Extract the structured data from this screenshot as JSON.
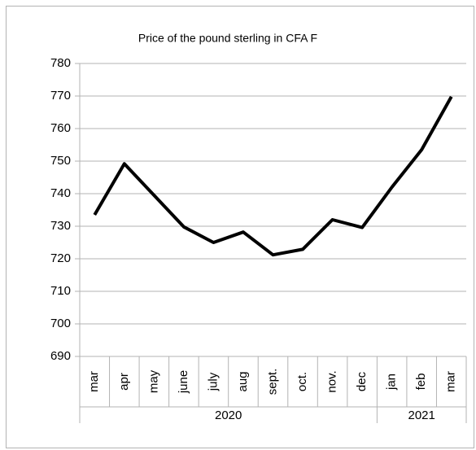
{
  "chart_data": {
    "type": "line",
    "title": "Price of the pound sterling in CFA F",
    "categories": [
      "mar",
      "apr",
      "may",
      "june",
      "july",
      "aug",
      "sept.",
      "oct.",
      "nov.",
      "dec",
      "jan",
      "feb",
      "mar"
    ],
    "year_groups": [
      {
        "label": "2020",
        "count": 10
      },
      {
        "label": "2021",
        "count": 3
      }
    ],
    "values": [
      733.5,
      749.2,
      739.5,
      729.8,
      725,
      728.2,
      721.2,
      722.9,
      732,
      729.6,
      742,
      753.5,
      769.8
    ],
    "color": "#000000",
    "ylim": [
      690,
      780
    ],
    "yticks": [
      690,
      700,
      710,
      720,
      730,
      740,
      750,
      760,
      770,
      780
    ],
    "grid": true
  }
}
